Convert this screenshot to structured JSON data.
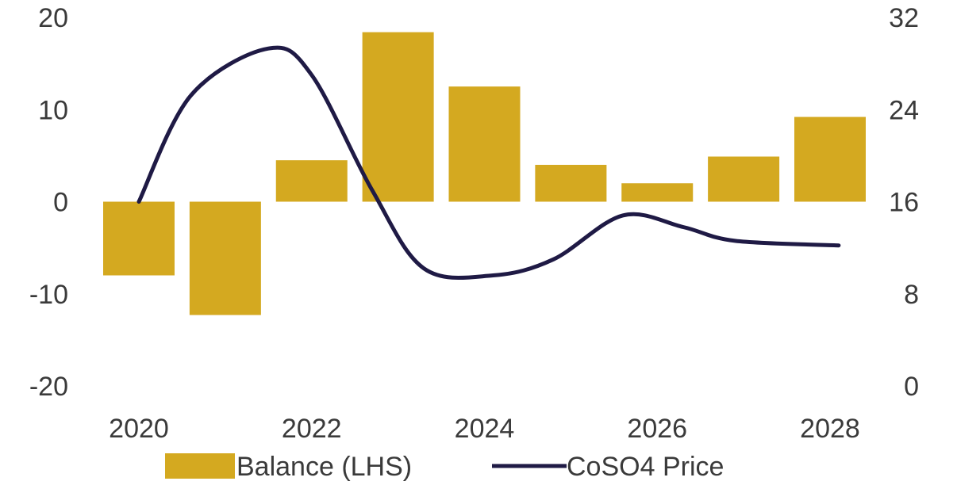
{
  "chart_data": {
    "type": "bar",
    "categories": [
      "2020",
      "2021",
      "2022",
      "2023",
      "2024",
      "2025",
      "2026",
      "2027",
      "2028"
    ],
    "x_tick_labels": [
      "2020",
      "2022",
      "2024",
      "2026",
      "2028"
    ],
    "series": [
      {
        "name": "Balance (LHS)",
        "type": "bar",
        "axis": "left",
        "color": "#d4a920",
        "values": [
          -8,
          -12.3,
          4.5,
          18.4,
          12.5,
          4,
          2,
          4.9,
          9.2
        ]
      },
      {
        "name": "CoSO4 Price",
        "type": "line",
        "axis": "right",
        "color": "#1f1a45",
        "points": [
          {
            "x": 2020,
            "y": 16
          },
          {
            "x": 2020.6,
            "y": 25.2
          },
          {
            "x": 2021.5,
            "y": 29.3
          },
          {
            "x": 2022.0,
            "y": 27
          },
          {
            "x": 2022.7,
            "y": 17
          },
          {
            "x": 2023.3,
            "y": 10.2
          },
          {
            "x": 2024.1,
            "y": 9.6
          },
          {
            "x": 2024.8,
            "y": 11
          },
          {
            "x": 2025.6,
            "y": 14.8
          },
          {
            "x": 2026.3,
            "y": 13.8
          },
          {
            "x": 2026.9,
            "y": 12.6
          },
          {
            "x": 2028.1,
            "y": 12.2
          }
        ]
      }
    ],
    "y_left": {
      "ylim": [
        -20,
        20
      ],
      "ticks": [
        "20",
        "10",
        "0",
        "-10",
        "-20"
      ]
    },
    "y_right": {
      "ylim": [
        0,
        32
      ],
      "ticks": [
        "32",
        "24",
        "16",
        "8",
        "0"
      ]
    },
    "grid": false,
    "legend_position": "bottom"
  }
}
